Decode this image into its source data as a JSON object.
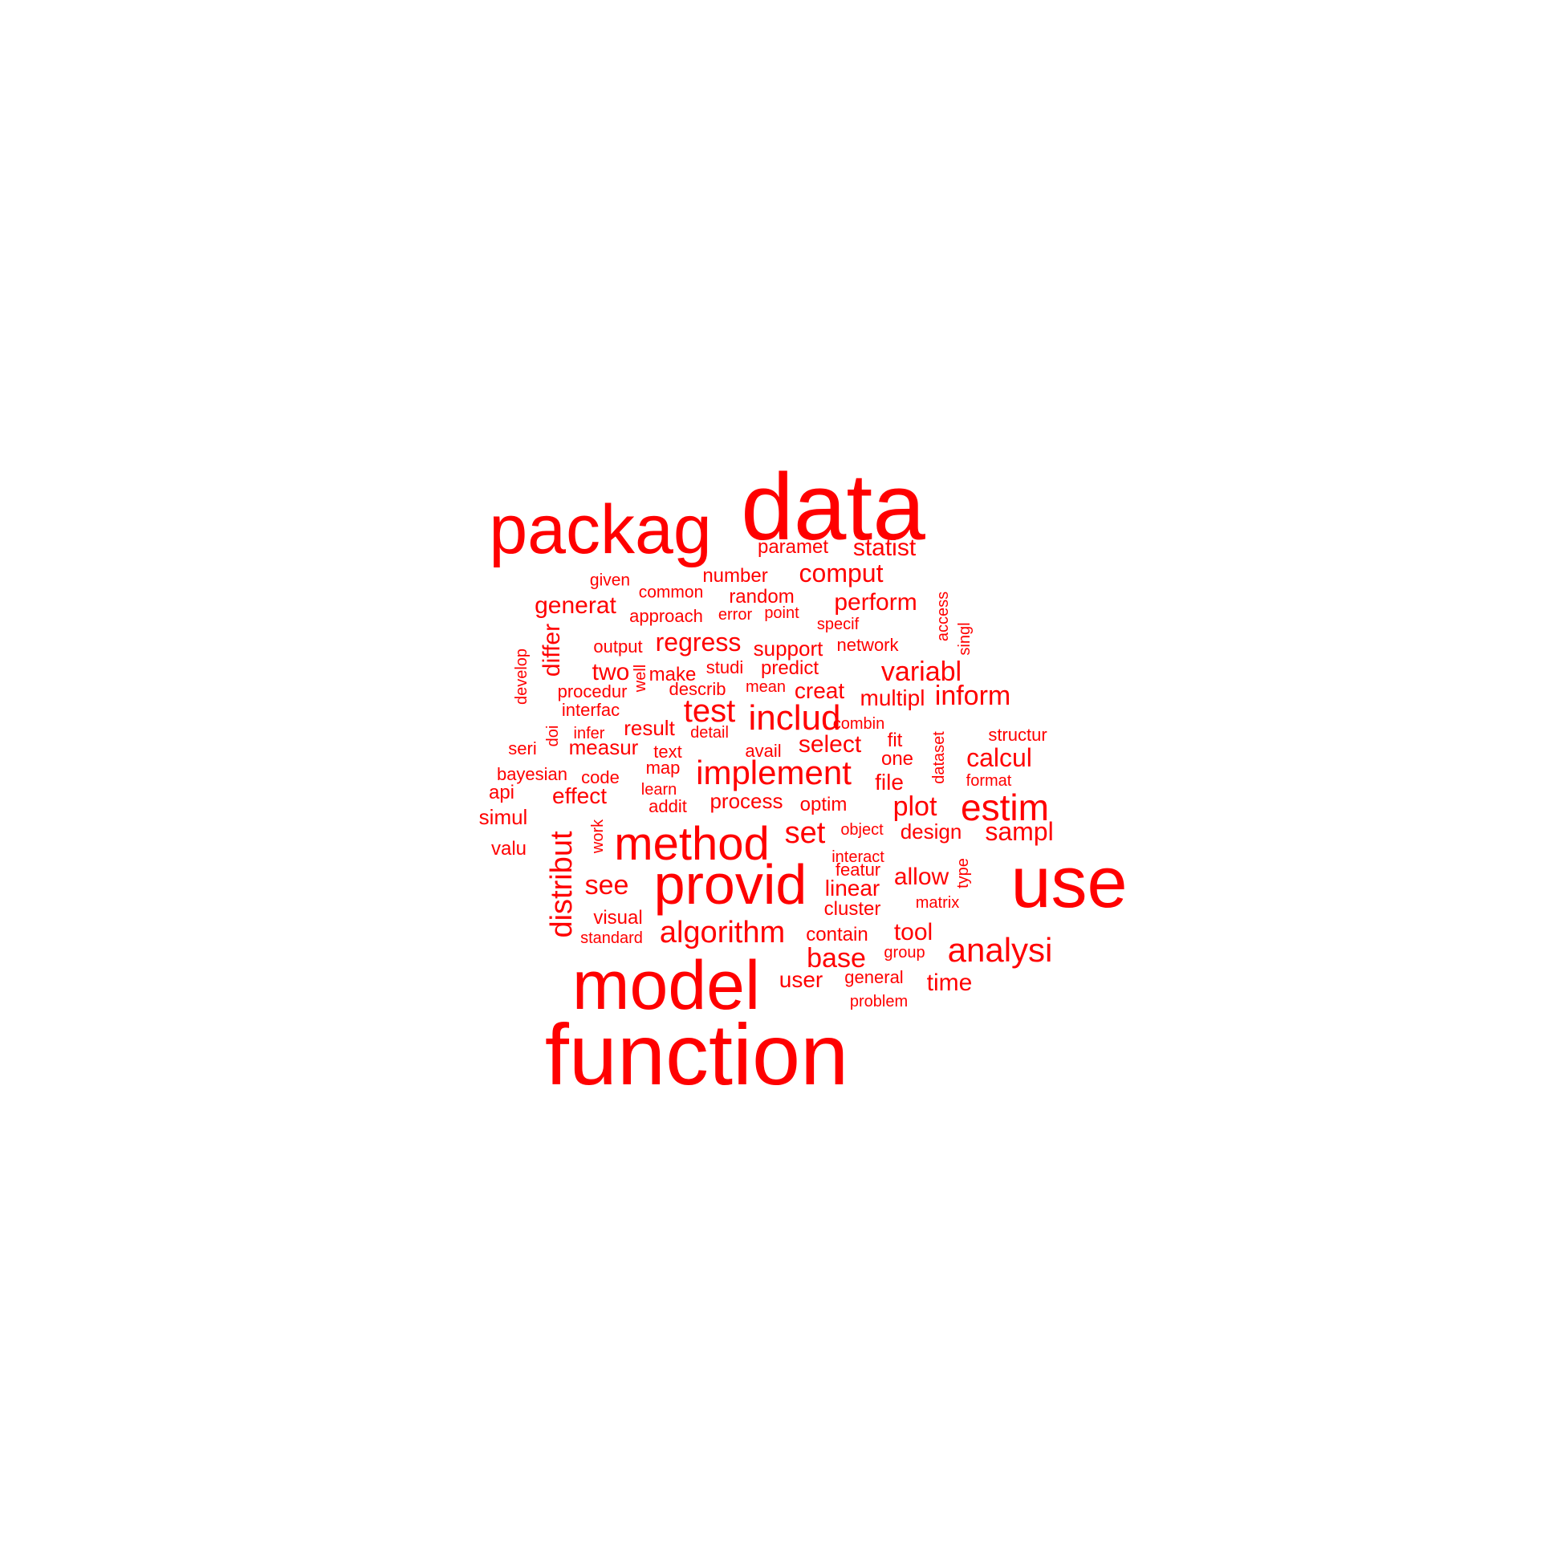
{
  "color": "#ff0000",
  "words": [
    {
      "t": "data",
      "s": "xxl"
    },
    {
      "t": "packag",
      "s": "xl"
    },
    {
      "t": "use",
      "s": "xxl"
    },
    {
      "t": "function",
      "s": "xxl"
    },
    {
      "t": "model",
      "s": "xxl"
    },
    {
      "t": "provid",
      "s": "xl"
    },
    {
      "t": "method",
      "s": "xl"
    },
    {
      "t": "estim",
      "s": "l"
    },
    {
      "t": "implement",
      "s": "l"
    },
    {
      "t": "includ",
      "s": "l"
    },
    {
      "t": "analysi",
      "s": "l"
    },
    {
      "t": "test",
      "s": "l"
    },
    {
      "t": "algorithm",
      "s": "m"
    },
    {
      "t": "distribut",
      "s": "m",
      "rot": true
    },
    {
      "t": "base",
      "s": "m"
    },
    {
      "t": "paramet",
      "s": "s"
    },
    {
      "t": "statist",
      "s": "m"
    },
    {
      "t": "comput",
      "s": "m"
    },
    {
      "t": "number",
      "s": "s"
    },
    {
      "t": "given",
      "s": "xs"
    },
    {
      "t": "common",
      "s": "xs"
    },
    {
      "t": "random",
      "s": "s"
    },
    {
      "t": "perform",
      "s": "m"
    },
    {
      "t": "generat",
      "s": "m"
    },
    {
      "t": "approach",
      "s": "s"
    },
    {
      "t": "error",
      "s": "xs"
    },
    {
      "t": "point",
      "s": "xs"
    },
    {
      "t": "specif",
      "s": "xs"
    },
    {
      "t": "access",
      "s": "xs",
      "rot": true
    },
    {
      "t": "singl",
      "s": "xs",
      "rot": true
    },
    {
      "t": "differ",
      "s": "m",
      "rot": true
    },
    {
      "t": "develop",
      "s": "xs",
      "rot": true
    },
    {
      "t": "output",
      "s": "s"
    },
    {
      "t": "regress",
      "s": "m"
    },
    {
      "t": "support",
      "s": "s"
    },
    {
      "t": "network",
      "s": "s"
    },
    {
      "t": "two",
      "s": "m"
    },
    {
      "t": "well",
      "s": "xs",
      "rot": true
    },
    {
      "t": "make",
      "s": "s"
    },
    {
      "t": "studi",
      "s": "s"
    },
    {
      "t": "predict",
      "s": "s"
    },
    {
      "t": "variabl",
      "s": "m"
    },
    {
      "t": "procedur",
      "s": "s"
    },
    {
      "t": "describ",
      "s": "s"
    },
    {
      "t": "mean",
      "s": "xs"
    },
    {
      "t": "creat",
      "s": "m"
    },
    {
      "t": "multipl",
      "s": "m"
    },
    {
      "t": "inform",
      "s": "m"
    },
    {
      "t": "interfac",
      "s": "s"
    },
    {
      "t": "doi",
      "s": "s",
      "rot": true
    },
    {
      "t": "infer",
      "s": "xs"
    },
    {
      "t": "result",
      "s": "s"
    },
    {
      "t": "detail",
      "s": "xs"
    },
    {
      "t": "combin",
      "s": "xs"
    },
    {
      "t": "dataset",
      "s": "xs",
      "rot": true
    },
    {
      "t": "structur",
      "s": "s"
    },
    {
      "t": "seri",
      "s": "s"
    },
    {
      "t": "measur",
      "s": "m"
    },
    {
      "t": "text",
      "s": "s"
    },
    {
      "t": "avail",
      "s": "s"
    },
    {
      "t": "select",
      "s": "m"
    },
    {
      "t": "fit",
      "s": "s"
    },
    {
      "t": "one",
      "s": "s"
    },
    {
      "t": "calcul",
      "s": "m"
    },
    {
      "t": "bayesian",
      "s": "s"
    },
    {
      "t": "code",
      "s": "s"
    },
    {
      "t": "map",
      "s": "s"
    },
    {
      "t": "format",
      "s": "xs"
    },
    {
      "t": "api",
      "s": "s"
    },
    {
      "t": "effect",
      "s": "m"
    },
    {
      "t": "learn",
      "s": "xs"
    },
    {
      "t": "process",
      "s": "m"
    },
    {
      "t": "file",
      "s": "m"
    },
    {
      "t": "addit",
      "s": "s"
    },
    {
      "t": "optim",
      "s": "s"
    },
    {
      "t": "plot",
      "s": "m"
    },
    {
      "t": "simul",
      "s": "s"
    },
    {
      "t": "work",
      "s": "xs",
      "rot": true
    },
    {
      "t": "set",
      "s": "m"
    },
    {
      "t": "object",
      "s": "s"
    },
    {
      "t": "design",
      "s": "m"
    },
    {
      "t": "sampl",
      "s": "m"
    },
    {
      "t": "valu",
      "s": "s"
    },
    {
      "t": "interact",
      "s": "s"
    },
    {
      "t": "type",
      "s": "xs",
      "rot": true
    },
    {
      "t": "see",
      "s": "m"
    },
    {
      "t": "featur",
      "s": "s"
    },
    {
      "t": "allow",
      "s": "m"
    },
    {
      "t": "linear",
      "s": "m"
    },
    {
      "t": "cluster",
      "s": "s"
    },
    {
      "t": "matrix",
      "s": "xs"
    },
    {
      "t": "visual",
      "s": "s"
    },
    {
      "t": "standard",
      "s": "xs"
    },
    {
      "t": "contain",
      "s": "s"
    },
    {
      "t": "tool",
      "s": "m"
    },
    {
      "t": "group",
      "s": "xs"
    },
    {
      "t": "user",
      "s": "m"
    },
    {
      "t": "general",
      "s": "s"
    },
    {
      "t": "time",
      "s": "m"
    },
    {
      "t": "problem",
      "s": "xs"
    }
  ]
}
